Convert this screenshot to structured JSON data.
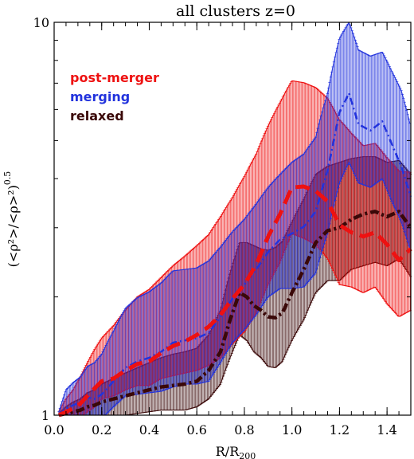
{
  "chart_data": {
    "type": "line",
    "title": "all clusters z=0",
    "xlabel": "R/R",
    "xlabel_sub": "200",
    "ylabel": "(<ρ²>/<ρ>²)",
    "ylabel_exp": "0.5",
    "xlim": [
      0.0,
      1.5
    ],
    "ylim": [
      1,
      10
    ],
    "yscale": "log",
    "x_ticks": [
      0.0,
      0.2,
      0.4,
      0.6,
      0.8,
      1.0,
      1.2,
      1.4
    ],
    "x_tick_labels": [
      "0.0",
      "0.2",
      "0.4",
      "0.6",
      "0.8",
      "1.0",
      "1.2",
      "1.4"
    ],
    "y_ticks": [
      1,
      10
    ],
    "y_tick_labels": [
      "1",
      "10"
    ],
    "legend_position": "top-left",
    "series": [
      {
        "name": "merging",
        "color": "#2233dd",
        "style": "dash-dot",
        "x": [
          0.02,
          0.05,
          0.08,
          0.11,
          0.14,
          0.17,
          0.2,
          0.25,
          0.3,
          0.35,
          0.4,
          0.45,
          0.5,
          0.55,
          0.6,
          0.65,
          0.7,
          0.75,
          0.8,
          0.85,
          0.9,
          0.95,
          1.0,
          1.05,
          1.1,
          1.15,
          1.2,
          1.24,
          1.28,
          1.33,
          1.38,
          1.42,
          1.46,
          1.5
        ],
        "y": [
          1.0,
          1.04,
          1.06,
          1.08,
          1.11,
          1.1,
          1.13,
          1.22,
          1.32,
          1.37,
          1.4,
          1.45,
          1.53,
          1.55,
          1.57,
          1.62,
          1.78,
          1.98,
          2.15,
          2.35,
          2.6,
          2.8,
          2.9,
          3.02,
          3.3,
          4.2,
          5.9,
          6.6,
          5.5,
          5.3,
          5.6,
          4.9,
          4.3,
          3.6
        ],
        "err_up": [
          0.02,
          0.12,
          0.15,
          0.17,
          0.22,
          0.26,
          0.3,
          0.42,
          0.55,
          0.62,
          0.66,
          0.72,
          0.8,
          0.8,
          0.8,
          0.85,
          0.9,
          0.95,
          1.0,
          1.1,
          1.2,
          1.3,
          1.5,
          1.6,
          1.8,
          2.4,
          3.2,
          3.4,
          3.0,
          2.9,
          2.8,
          2.6,
          2.4,
          1.8
        ],
        "err_dn": [
          0.01,
          0.08,
          0.1,
          0.12,
          0.14,
          0.15,
          0.15,
          0.17,
          0.2,
          0.24,
          0.26,
          0.3,
          0.35,
          0.35,
          0.37,
          0.4,
          0.42,
          0.45,
          0.5,
          0.55,
          0.6,
          0.7,
          0.8,
          0.9,
          1.0,
          1.3,
          2.0,
          2.2,
          1.6,
          1.5,
          1.6,
          1.4,
          1.2,
          1.0
        ]
      },
      {
        "name": "post-merger",
        "color": "#ee1111",
        "style": "dash",
        "x": [
          0.02,
          0.05,
          0.08,
          0.11,
          0.14,
          0.17,
          0.2,
          0.25,
          0.3,
          0.35,
          0.4,
          0.45,
          0.5,
          0.55,
          0.6,
          0.65,
          0.7,
          0.75,
          0.8,
          0.85,
          0.9,
          0.95,
          1.0,
          1.05,
          1.1,
          1.15,
          1.2,
          1.25,
          1.3,
          1.35,
          1.4,
          1.45,
          1.5
        ],
        "y": [
          1.0,
          1.02,
          1.04,
          1.07,
          1.12,
          1.17,
          1.22,
          1.24,
          1.3,
          1.35,
          1.37,
          1.44,
          1.5,
          1.54,
          1.6,
          1.68,
          1.8,
          1.98,
          2.15,
          2.42,
          2.85,
          3.25,
          3.8,
          3.82,
          3.72,
          3.5,
          3.05,
          2.92,
          2.85,
          2.92,
          2.72,
          2.48,
          2.65
        ],
        "err_up": [
          0.02,
          0.08,
          0.12,
          0.18,
          0.24,
          0.3,
          0.35,
          0.45,
          0.55,
          0.65,
          0.72,
          0.8,
          0.9,
          1.0,
          1.1,
          1.2,
          1.4,
          1.6,
          1.9,
          2.2,
          2.6,
          3.0,
          3.3,
          3.2,
          3.1,
          2.9,
          2.6,
          2.3,
          2.0,
          2.0,
          1.8,
          1.7,
          1.5
        ],
        "err_dn": [
          0.01,
          0.04,
          0.06,
          0.08,
          0.1,
          0.12,
          0.12,
          0.12,
          0.14,
          0.16,
          0.18,
          0.2,
          0.24,
          0.26,
          0.3,
          0.34,
          0.4,
          0.46,
          0.52,
          0.6,
          0.7,
          0.8,
          0.9,
          1.0,
          1.0,
          1.0,
          0.9,
          0.8,
          0.8,
          0.8,
          0.8,
          0.7,
          0.8
        ]
      },
      {
        "name": "relaxed",
        "color": "#3a0808",
        "style": "dash-dot",
        "x": [
          0.02,
          0.05,
          0.08,
          0.11,
          0.14,
          0.17,
          0.2,
          0.25,
          0.3,
          0.35,
          0.4,
          0.45,
          0.5,
          0.55,
          0.6,
          0.65,
          0.7,
          0.74,
          0.78,
          0.81,
          0.84,
          0.87,
          0.9,
          0.93,
          0.96,
          1.0,
          1.05,
          1.1,
          1.15,
          1.2,
          1.25,
          1.3,
          1.35,
          1.4,
          1.45,
          1.5
        ],
        "y": [
          1.0,
          1.01,
          1.02,
          1.03,
          1.05,
          1.06,
          1.08,
          1.1,
          1.12,
          1.14,
          1.16,
          1.18,
          1.19,
          1.2,
          1.22,
          1.3,
          1.45,
          1.75,
          2.05,
          2.0,
          1.9,
          1.85,
          1.78,
          1.77,
          1.82,
          2.05,
          2.35,
          2.75,
          2.95,
          3.0,
          3.15,
          3.25,
          3.3,
          3.2,
          3.3,
          3.0
        ],
        "err_up": [
          0.01,
          0.04,
          0.06,
          0.07,
          0.09,
          0.1,
          0.12,
          0.14,
          0.16,
          0.18,
          0.2,
          0.22,
          0.24,
          0.25,
          0.26,
          0.3,
          0.4,
          0.55,
          0.7,
          0.75,
          0.8,
          0.8,
          0.85,
          0.9,
          0.95,
          1.05,
          1.2,
          1.35,
          1.35,
          1.4,
          1.35,
          1.3,
          1.25,
          1.2,
          1.15,
          1.1
        ],
        "err_dn": [
          0.01,
          0.03,
          0.05,
          0.06,
          0.07,
          0.08,
          0.09,
          0.1,
          0.12,
          0.13,
          0.14,
          0.15,
          0.16,
          0.17,
          0.17,
          0.2,
          0.25,
          0.35,
          0.45,
          0.45,
          0.45,
          0.45,
          0.45,
          0.45,
          0.45,
          0.5,
          0.6,
          0.7,
          0.75,
          0.8,
          0.8,
          0.85,
          0.85,
          0.8,
          0.8,
          0.75
        ]
      }
    ]
  }
}
